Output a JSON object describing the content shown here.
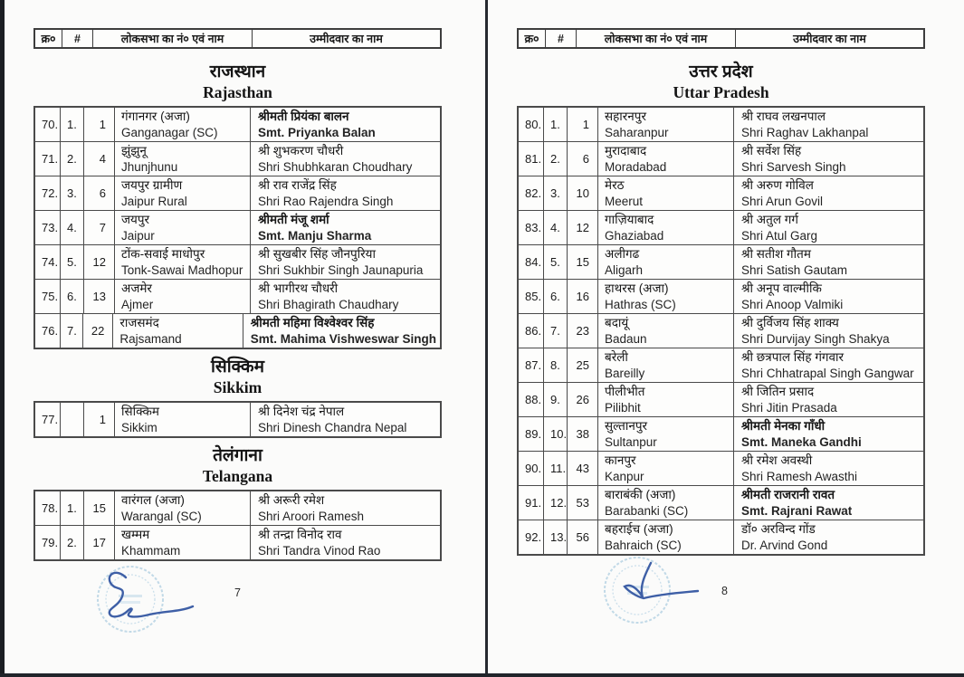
{
  "table_header": {
    "col_serial": "क्र०",
    "col_hash": "#",
    "col_constituency": "लोकसभा का नं० एवं नाम",
    "col_candidate": "उम्मीदवार का नाम"
  },
  "icons": {
    "stamp": "round-official-seal",
    "signature": "handwritten-signature"
  },
  "colors": {
    "page_bg": "#fbfbfa",
    "table_border": "#4a4a4a",
    "scan_edge": "#1b1e23",
    "stamp_blue": "#b3d0e2",
    "signature_blue": "#3e5fa6",
    "text": "#1c1c1c"
  },
  "pages": [
    {
      "page_number": "7",
      "sections": [
        {
          "title_hi": "राजस्थान",
          "title_en": "Rajasthan",
          "rows": [
            {
              "serial": "70.",
              "num": "1.",
              "cnum": "1",
              "constituency_hi": "गंगानगर (अजा)",
              "constituency_en": "Ganganagar (SC)",
              "candidate_hi": "श्रीमती प्रियंका बालन",
              "candidate_en": "Smt. Priyanka Balan",
              "bold": true
            },
            {
              "serial": "71.",
              "num": "2.",
              "cnum": "4",
              "constituency_hi": "झुंझुनू",
              "constituency_en": "Jhunjhunu",
              "candidate_hi": "श्री शुभकरण चौधरी",
              "candidate_en": "Shri Shubhkaran Choudhary",
              "bold": false
            },
            {
              "serial": "72.",
              "num": "3.",
              "cnum": "6",
              "constituency_hi": "जयपुर ग्रामीण",
              "constituency_en": "Jaipur Rural",
              "candidate_hi": "श्री राव राजेंद्र सिंह",
              "candidate_en": "Shri Rao Rajendra Singh",
              "bold": false
            },
            {
              "serial": "73.",
              "num": "4.",
              "cnum": "7",
              "constituency_hi": "जयपुर",
              "constituency_en": "Jaipur",
              "candidate_hi": "श्रीमती मंजू शर्मा",
              "candidate_en": "Smt. Manju Sharma",
              "bold": true
            },
            {
              "serial": "74.",
              "num": "5.",
              "cnum": "12",
              "constituency_hi": "टोंक-सवाई माधोपुर",
              "constituency_en": "Tonk-Sawai Madhopur",
              "candidate_hi": "श्री सुखबीर सिंह जौनपुरिया",
              "candidate_en": "Shri Sukhbir Singh  Jaunapuria",
              "bold": false
            },
            {
              "serial": "75.",
              "num": "6.",
              "cnum": "13",
              "constituency_hi": "अजमेर",
              "constituency_en": "Ajmer",
              "candidate_hi": "श्री भागीरथ चौधरी",
              "candidate_en": "Shri Bhagirath  Chaudhary",
              "bold": false
            },
            {
              "serial": "76.",
              "num": "7.",
              "cnum": "22",
              "constituency_hi": "राजसमंद",
              "constituency_en": "Rajsamand",
              "candidate_hi": "श्रीमती महिमा विश्वेश्वर सिंह",
              "candidate_en": "Smt. Mahima  Vishweswar Singh",
              "bold": true
            }
          ]
        },
        {
          "title_hi": "सिक्किम",
          "title_en": "Sikkim",
          "rows": [
            {
              "serial": "77.",
              "num": "",
              "cnum": "1",
              "constituency_hi": "सिक्किम",
              "constituency_en": "Sikkim",
              "candidate_hi": "श्री दिनेश चंद्र नेपाल",
              "candidate_en": "Shri Dinesh Chandra Nepal",
              "bold": false
            }
          ]
        },
        {
          "title_hi": "तेलंगाना",
          "title_en": "Telangana",
          "rows": [
            {
              "serial": "78.",
              "num": "1.",
              "cnum": "15",
              "constituency_hi": "वारंगल (अजा)",
              "constituency_en": "Warangal (SC)",
              "candidate_hi": "श्री अरूरी रमेश",
              "candidate_en": "Shri Aroori  Ramesh",
              "bold": false
            },
            {
              "serial": "79.",
              "num": "2.",
              "cnum": "17",
              "constituency_hi": "खम्मम",
              "constituency_en": "Khammam",
              "candidate_hi": "श्री तन्द्रा विनोद राव",
              "candidate_en": "Shri Tandra  Vinod Rao",
              "bold": false
            }
          ]
        }
      ]
    },
    {
      "page_number": "8",
      "sections": [
        {
          "title_hi": "उत्तर प्रदेश",
          "title_en": "Uttar Pradesh",
          "rows": [
            {
              "serial": "80.",
              "num": "1.",
              "cnum": "1",
              "constituency_hi": "सहारनपुर",
              "constituency_en": "Saharanpur",
              "candidate_hi": "श्री राघव लखनपाल",
              "candidate_en": "Shri Raghav Lakhanpal",
              "bold": false
            },
            {
              "serial": "81.",
              "num": "2.",
              "cnum": "6",
              "constituency_hi": "मुरादाबाद",
              "constituency_en": "Moradabad",
              "candidate_hi": "श्री सर्वेश सिंह",
              "candidate_en": "Shri Sarvesh Singh",
              "bold": false
            },
            {
              "serial": "82.",
              "num": "3.",
              "cnum": "10",
              "constituency_hi": "मेरठ",
              "constituency_en": "Meerut",
              "candidate_hi": "श्री अरुण गोविल",
              "candidate_en": "Shri Arun Govil",
              "bold": false
            },
            {
              "serial": "83.",
              "num": "4.",
              "cnum": "12",
              "constituency_hi": "गाज़ियाबाद",
              "constituency_en": "Ghaziabad",
              "candidate_hi": "श्री अतुल गर्ग",
              "candidate_en": "Shri Atul Garg",
              "bold": false
            },
            {
              "serial": "84.",
              "num": "5.",
              "cnum": "15",
              "constituency_hi": "अलीगढ",
              "constituency_en": "Aligarh",
              "candidate_hi": "श्री सतीश गौतम",
              "candidate_en": "Shri Satish Gautam",
              "bold": false
            },
            {
              "serial": "85.",
              "num": "6.",
              "cnum": "16",
              "constituency_hi": "हाथरस (अजा)",
              "constituency_en": "Hathras (SC)",
              "candidate_hi": "श्री अनूप वाल्मीकि",
              "candidate_en": "Shri Anoop Valmiki",
              "bold": false
            },
            {
              "serial": "86.",
              "num": "7.",
              "cnum": "23",
              "constituency_hi": "बदायूं",
              "constituency_en": "Badaun",
              "candidate_hi": "श्री दुर्विजय सिंह शाक्य",
              "candidate_en": "Shri Durvijay Singh  Shakya",
              "bold": false
            },
            {
              "serial": "87.",
              "num": "8.",
              "cnum": "25",
              "constituency_hi": "बरेली",
              "constituency_en": "Bareilly",
              "candidate_hi": "श्री छत्रपाल सिंह गंगवार",
              "candidate_en": "Shri Chhatrapal Singh  Gangwar",
              "bold": false
            },
            {
              "serial": "88.",
              "num": "9.",
              "cnum": "26",
              "constituency_hi": "पीलीभीत",
              "constituency_en": "Pilibhit",
              "candidate_hi": "श्री जितिन प्रसाद",
              "candidate_en": "Shri Jitin Prasada",
              "bold": false
            },
            {
              "serial": "89.",
              "num": "10.",
              "cnum": "38",
              "constituency_hi": "सुल्तानपुर",
              "constituency_en": "Sultanpur",
              "candidate_hi": "श्रीमती मेनका गाँधी",
              "candidate_en": "Smt. Maneka Gandhi",
              "bold": true
            },
            {
              "serial": "90.",
              "num": "11.",
              "cnum": "43",
              "constituency_hi": "कानपुर",
              "constituency_en": "Kanpur",
              "candidate_hi": "श्री रमेश अवस्थी",
              "candidate_en": "Shri Ramesh Awasthi",
              "bold": false
            },
            {
              "serial": "91.",
              "num": "12.",
              "cnum": "53",
              "constituency_hi": "बाराबंकी (अजा)",
              "constituency_en": "Barabanki (SC)",
              "candidate_hi": "श्रीमती राजरानी रावत",
              "candidate_en": "Smt. Rajrani Rawat",
              "bold": true
            },
            {
              "serial": "92.",
              "num": "13.",
              "cnum": "56",
              "constituency_hi": "बहराईच (अजा)",
              "constituency_en": "Bahraich (SC)",
              "candidate_hi": "डॉ० अरविन्द गोंड",
              "candidate_en": "Dr. Arvind Gond",
              "bold": false
            }
          ]
        }
      ]
    }
  ]
}
